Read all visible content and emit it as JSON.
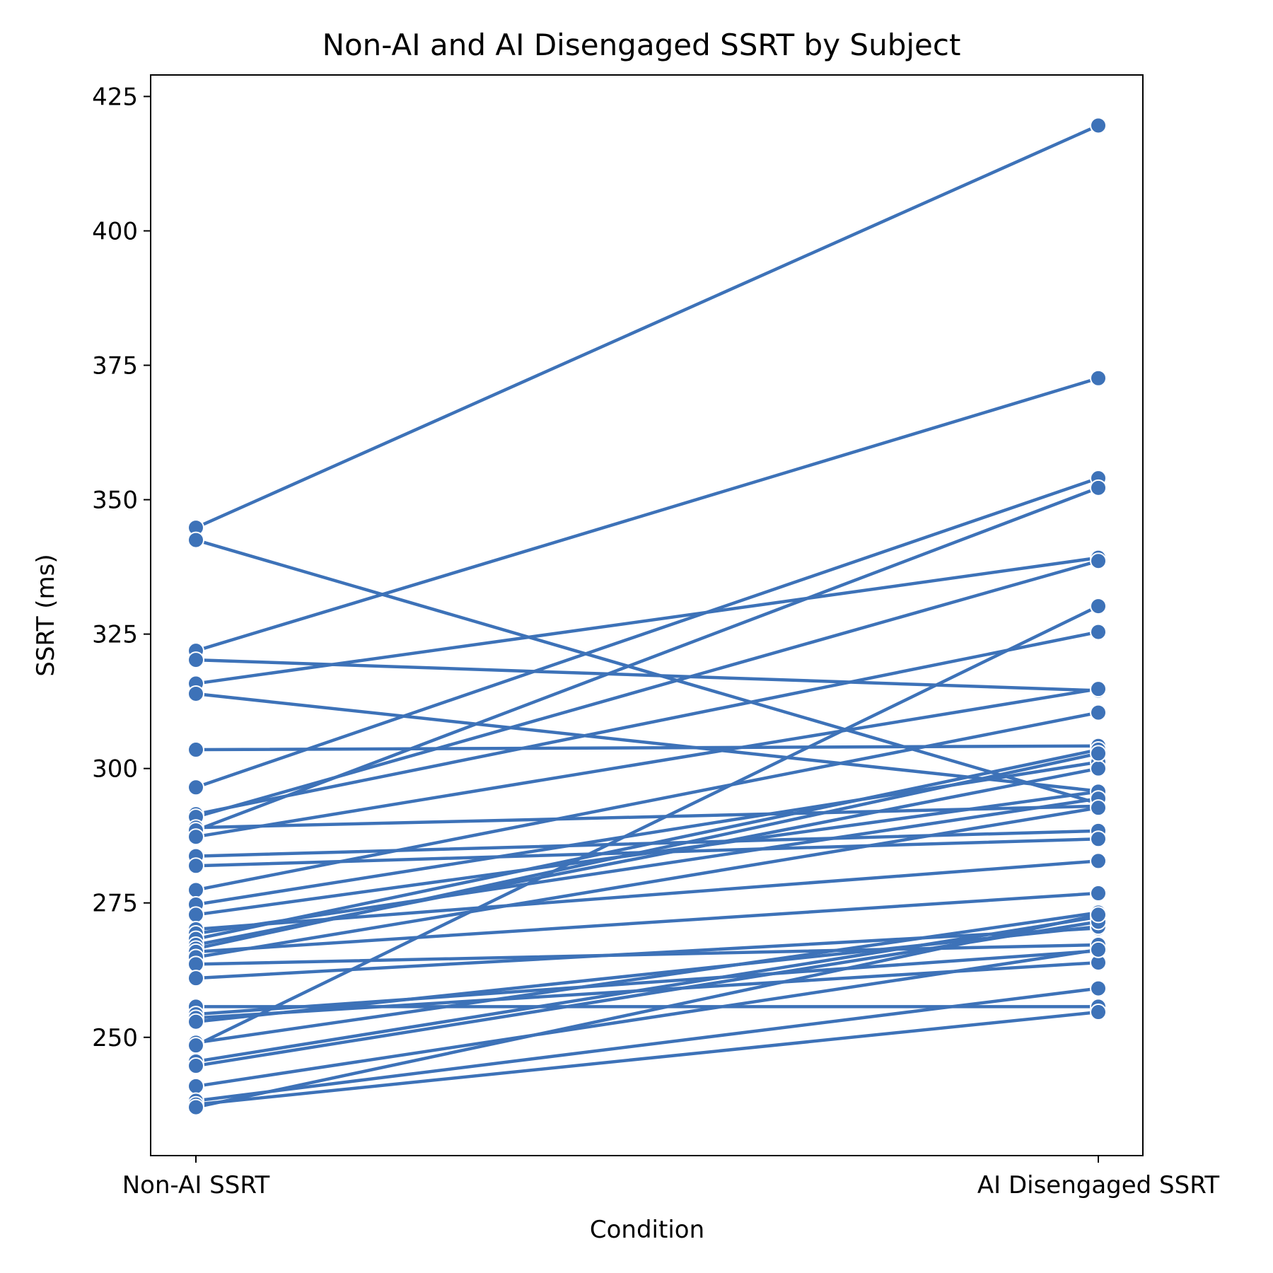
{
  "chart_data": {
    "type": "line",
    "title": "Non-AI and AI Disengaged SSRT by Subject",
    "xlabel": "Condition",
    "ylabel": "SSRT (ms)",
    "categories": [
      "Non-AI SSRT",
      "AI Disengaged SSRT"
    ],
    "ylim": [
      228,
      429
    ],
    "yticks": [
      250,
      275,
      300,
      325,
      350,
      375,
      400,
      425
    ],
    "color": "#3d72b8",
    "marker_edge_color": "#ffffff",
    "grid": false,
    "legend": "none",
    "series": [
      {
        "values": [
          344.8,
          419.6
        ]
      },
      {
        "values": [
          342.5,
          293.5
        ]
      },
      {
        "values": [
          321.9,
          372.6
        ]
      },
      {
        "values": [
          320.2,
          314.5
        ]
      },
      {
        "values": [
          315.8,
          339.2
        ]
      },
      {
        "values": [
          313.9,
          295.8
        ]
      },
      {
        "values": [
          303.5,
          304.2
        ]
      },
      {
        "values": [
          296.5,
          354.0
        ]
      },
      {
        "values": [
          291.5,
          325.4
        ]
      },
      {
        "values": [
          291.0,
          338.6
        ]
      },
      {
        "values": [
          289.0,
          293.0
        ]
      },
      {
        "values": [
          288.5,
          352.2
        ]
      },
      {
        "values": [
          287.3,
          314.8
        ]
      },
      {
        "values": [
          283.7,
          288.4
        ]
      },
      {
        "values": [
          281.9,
          286.9
        ]
      },
      {
        "values": [
          277.4,
          310.4
        ]
      },
      {
        "values": [
          274.7,
          301.2
        ]
      },
      {
        "values": [
          272.8,
          295.7
        ]
      },
      {
        "values": [
          270.1,
          282.8
        ]
      },
      {
        "values": [
          269.3,
          294.4
        ]
      },
      {
        "values": [
          268.3,
          303.5
        ]
      },
      {
        "values": [
          267.2,
          300.0
        ]
      },
      {
        "values": [
          266.5,
          302.8
        ]
      },
      {
        "values": [
          265.9,
          276.8
        ]
      },
      {
        "values": [
          264.9,
          292.7
        ]
      },
      {
        "values": [
          263.6,
          267.2
        ]
      },
      {
        "values": [
          261.0,
          270.3
        ]
      },
      {
        "values": [
          255.7,
          255.7
        ]
      },
      {
        "values": [
          254.3,
          266.1
        ]
      },
      {
        "values": [
          253.6,
          263.9
        ]
      },
      {
        "values": [
          252.9,
          270.6
        ]
      },
      {
        "values": [
          249.0,
          273.2
        ]
      },
      {
        "values": [
          248.5,
          330.2
        ]
      },
      {
        "values": [
          245.5,
          272.4
        ]
      },
      {
        "values": [
          244.7,
          271.5
        ]
      },
      {
        "values": [
          240.9,
          266.3
        ]
      },
      {
        "values": [
          238.2,
          259.1
        ]
      },
      {
        "values": [
          237.5,
          254.7
        ]
      },
      {
        "values": [
          237.0,
          272.8
        ]
      }
    ]
  }
}
